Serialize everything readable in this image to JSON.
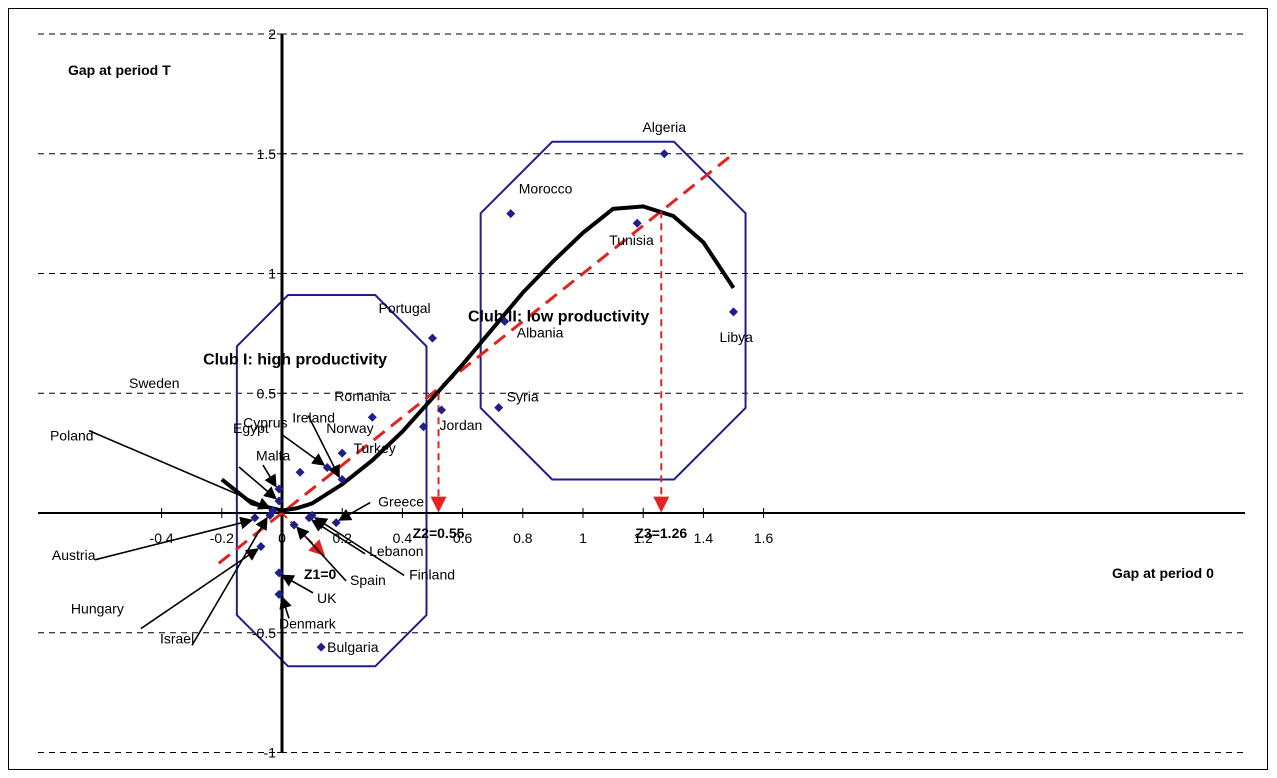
{
  "chart_data": {
    "type": "scatter",
    "title": "",
    "xlabel": "Gap at period 0",
    "ylabel": "Gap at period T",
    "xlim": [
      -0.4,
      1.6
    ],
    "ylim": [
      -1,
      2
    ],
    "x_ticks": [
      -0.4,
      -0.2,
      0,
      0.2,
      0.4,
      0.6,
      0.8,
      1,
      1.2,
      1.4,
      1.6
    ],
    "x_tick_labels": [
      "-0.4",
      "-0.2",
      "0",
      "0.2",
      "0.4",
      "0.6",
      "0.8",
      "1",
      "1.2",
      "1.4",
      "1.6"
    ],
    "y_ticks": [
      -1,
      -0.5,
      0.5,
      1,
      1.5,
      2
    ],
    "y_tick_labels": [
      "-1",
      "-0.5",
      "0.5",
      "1",
      "1.5",
      "2"
    ],
    "gridlines": "horizontal dashed",
    "points": [
      {
        "name": "Algeria",
        "x": 1.27,
        "y": 1.5
      },
      {
        "name": "Morocco",
        "x": 0.76,
        "y": 1.25
      },
      {
        "name": "Tunisia",
        "x": 1.18,
        "y": 1.21
      },
      {
        "name": "Libya",
        "x": 1.5,
        "y": 0.84
      },
      {
        "name": "Albania",
        "x": 0.74,
        "y": 0.8
      },
      {
        "name": "Syria",
        "x": 0.72,
        "y": 0.44
      },
      {
        "name": "Portugal",
        "x": 0.5,
        "y": 0.73
      },
      {
        "name": "Jordan",
        "x": 0.53,
        "y": 0.43
      },
      {
        "name": "Turkey",
        "x": 0.47,
        "y": 0.36
      },
      {
        "name": "Romania",
        "x": 0.3,
        "y": 0.4
      },
      {
        "name": "Norway",
        "x": 0.2,
        "y": 0.25
      },
      {
        "name": "Ireland",
        "x": 0.2,
        "y": 0.14
      },
      {
        "name": "Cyprus",
        "x": 0.15,
        "y": 0.19
      },
      {
        "name": "Malta",
        "x": 0.06,
        "y": 0.17
      },
      {
        "name": "Greece",
        "x": 0.18,
        "y": -0.04
      },
      {
        "name": "Finland",
        "x": 0.1,
        "y": -0.01
      },
      {
        "name": "Lebanon",
        "x": 0.09,
        "y": -0.02
      },
      {
        "name": "Spain",
        "x": 0.04,
        "y": -0.05
      },
      {
        "name": "Egypt",
        "x": -0.01,
        "y": 0.1
      },
      {
        "name": "Sweden",
        "x": -0.01,
        "y": 0.05
      },
      {
        "name": "Poland",
        "x": -0.03,
        "y": 0.01
      },
      {
        "name": "Austria",
        "x": -0.09,
        "y": -0.02
      },
      {
        "name": "Hungary",
        "x": -0.07,
        "y": -0.14
      },
      {
        "name": "Israel",
        "x": -0.04,
        "y": -0.01
      },
      {
        "name": "UK",
        "x": -0.01,
        "y": -0.25
      },
      {
        "name": "Denmark",
        "x": -0.01,
        "y": -0.34
      },
      {
        "name": "Bulgaria",
        "x": 0.13,
        "y": -0.56
      }
    ],
    "curve": [
      {
        "x": -0.2,
        "y": 0.14
      },
      {
        "x": -0.1,
        "y": 0.04
      },
      {
        "x": 0,
        "y": 0.01
      },
      {
        "x": 0.05,
        "y": 0.02
      },
      {
        "x": 0.1,
        "y": 0.04
      },
      {
        "x": 0.2,
        "y": 0.12
      },
      {
        "x": 0.3,
        "y": 0.22
      },
      {
        "x": 0.4,
        "y": 0.34
      },
      {
        "x": 0.5,
        "y": 0.48
      },
      {
        "x": 0.6,
        "y": 0.62
      },
      {
        "x": 0.7,
        "y": 0.77
      },
      {
        "x": 0.8,
        "y": 0.92
      },
      {
        "x": 0.9,
        "y": 1.05
      },
      {
        "x": 1.0,
        "y": 1.17
      },
      {
        "x": 1.1,
        "y": 1.27
      },
      {
        "x": 1.2,
        "y": 1.28
      },
      {
        "x": 1.3,
        "y": 1.24
      },
      {
        "x": 1.4,
        "y": 1.13
      },
      {
        "x": 1.5,
        "y": 0.94
      }
    ],
    "trend_line": {
      "from": {
        "x": -0.21,
        "y": -0.21
      },
      "to": {
        "x": 1.5,
        "y": 1.5
      }
    },
    "thresholds": [
      {
        "label": "Z1=0",
        "x": 0,
        "y": 0
      },
      {
        "label": "Z2=0.55",
        "x": 0.52,
        "y": 0.5
      },
      {
        "label": "Z3=1.26",
        "x": 1.26,
        "y": 1.26
      }
    ],
    "clubs": [
      {
        "label": "Club I: high productivity",
        "xmin": -0.15,
        "xmax": 0.48,
        "ymin": -0.64,
        "ymax": 0.91
      },
      {
        "label": "Club II: low productivity",
        "xmin": 0.66,
        "xmax": 1.54,
        "ymin": 0.14,
        "ymax": 1.55
      }
    ]
  },
  "colors": {
    "point": "#1f1f8a",
    "curve": "#000000",
    "trend": "#e3231f",
    "club_outline": "#1f1f8a"
  }
}
